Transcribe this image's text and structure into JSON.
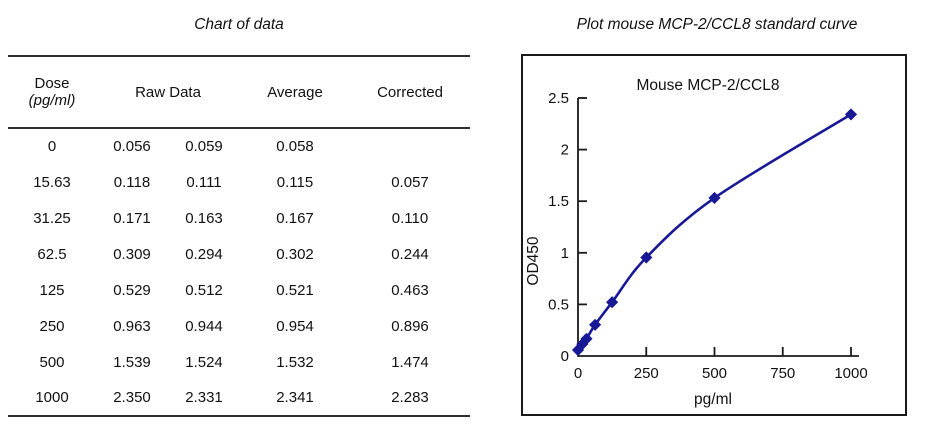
{
  "table": {
    "title": "Chart of data",
    "headers": {
      "dose": "Dose",
      "dose_unit": "(pg/ml)",
      "raw": "Raw Data",
      "average": "Average",
      "corrected": "Corrected"
    },
    "rows": [
      {
        "dose": "0",
        "raw1": "0.056",
        "raw2": "0.059",
        "avg": "0.058",
        "corr": ""
      },
      {
        "dose": "15.63",
        "raw1": "0.118",
        "raw2": "0.111",
        "avg": "0.115",
        "corr": "0.057"
      },
      {
        "dose": "31.25",
        "raw1": "0.171",
        "raw2": "0.163",
        "avg": "0.167",
        "corr": "0.110"
      },
      {
        "dose": "62.5",
        "raw1": "0.309",
        "raw2": "0.294",
        "avg": "0.302",
        "corr": "0.244"
      },
      {
        "dose": "125",
        "raw1": "0.529",
        "raw2": "0.512",
        "avg": "0.521",
        "corr": "0.463"
      },
      {
        "dose": "250",
        "raw1": "0.963",
        "raw2": "0.944",
        "avg": "0.954",
        "corr": "0.896"
      },
      {
        "dose": "500",
        "raw1": "1.539",
        "raw2": "1.524",
        "avg": "1.532",
        "corr": "1.474"
      },
      {
        "dose": "1000",
        "raw1": "2.350",
        "raw2": "2.331",
        "avg": "2.341",
        "corr": "2.283"
      }
    ]
  },
  "plot": {
    "title": "Plot mouse MCP-2/CCL8 standard curve"
  },
  "chart_data": {
    "type": "line",
    "title": "Mouse MCP-2/CCL8",
    "xlabel": "pg/ml",
    "ylabel": "OD450",
    "x": [
      0,
      15.63,
      31.25,
      62.5,
      125,
      250,
      500,
      1000
    ],
    "y": [
      0.058,
      0.115,
      0.167,
      0.302,
      0.521,
      0.954,
      1.532,
      2.341
    ],
    "xticks": [
      0,
      250,
      500,
      750,
      1000
    ],
    "yticks": [
      0,
      0.5,
      1,
      1.5,
      2,
      2.5
    ],
    "xlim": [
      0,
      1030
    ],
    "ylim": [
      0,
      2.5
    ],
    "grid": false,
    "legend": "none",
    "line_color": "#191996",
    "axis_color": "#1a1a1a",
    "marker": "diamond"
  }
}
